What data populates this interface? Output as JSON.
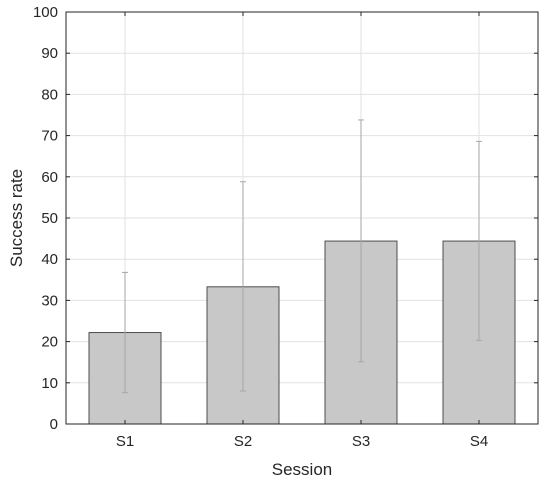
{
  "chart_data": {
    "type": "bar",
    "title": "",
    "xlabel": "Session",
    "ylabel": "Success rate",
    "categories": [
      "S1",
      "S2",
      "S3",
      "S4"
    ],
    "values": [
      22.2,
      33.3,
      44.4,
      44.4
    ],
    "error_low": [
      7.6,
      8.0,
      15.1,
      20.3
    ],
    "error_high": [
      36.8,
      58.8,
      73.8,
      68.6
    ],
    "ylim": [
      0,
      100
    ],
    "yticks": [
      0,
      10,
      20,
      30,
      40,
      50,
      60,
      70,
      80,
      90,
      100
    ],
    "grid": true,
    "legend": "none",
    "colors": {
      "bar_fill": "#c8c8c8",
      "bar_edge": "#4d4d4d",
      "error_bar": "#a6a6a6",
      "grid": "#e2e2e2",
      "axis": "#262626"
    }
  }
}
